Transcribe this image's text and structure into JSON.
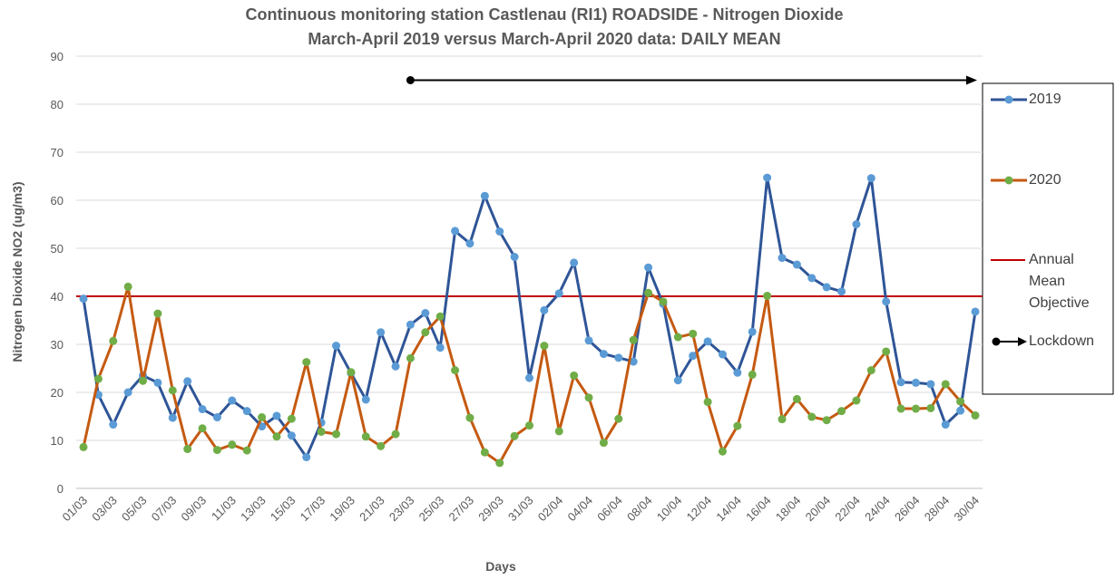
{
  "chart_data": {
    "type": "line",
    "title": "Continuous monitoring station Castlenau (RI1) ROADSIDE - Nitrogen Dioxide",
    "subtitle": "March-April 2019 versus March-April 2020 data: DAILY MEAN",
    "x_label": "Days",
    "y_label": "Nitrogen Dioxide NO2  (ug/m3)",
    "categories": [
      "01/03",
      null,
      "03/03",
      null,
      "05/03",
      null,
      "07/03",
      null,
      "09/03",
      null,
      "11/03",
      null,
      "13/03",
      null,
      "15/03",
      null,
      "17/03",
      null,
      "19/03",
      null,
      "21/03",
      null,
      "23/03",
      null,
      "25/03",
      null,
      "27/03",
      null,
      "29/03",
      null,
      "31/03",
      null,
      "02/04",
      null,
      "04/04",
      null,
      "06/04",
      null,
      "08/04",
      null,
      "10/04",
      null,
      "12/04",
      null,
      "14/04",
      null,
      "16/04",
      null,
      "18/04",
      null,
      "20/04",
      null,
      "22/04",
      null,
      "24/04",
      null,
      "26/04",
      null,
      "28/04",
      null,
      "30/04"
    ],
    "series": [
      {
        "name": "2019",
        "color": "#2f5597",
        "marker_color": "#5b9bd5",
        "values": [
          39.5,
          19.5,
          13.3,
          20,
          23.5,
          22,
          14.7,
          22.3,
          16.5,
          14.8,
          18.3,
          16.1,
          12.9,
          15.1,
          11,
          6.5,
          13.7,
          29.7,
          24,
          18.5,
          32.5,
          25.4,
          34.1,
          36.5,
          29.3,
          53.6,
          51,
          60.9,
          53.5,
          48.2,
          23,
          37.1,
          40.6,
          47,
          30.8,
          28,
          27.2,
          26.4,
          46,
          38.4,
          22.5,
          27.6,
          30.6,
          27.9,
          24.1,
          32.6,
          64.7,
          48,
          46.6,
          43.8,
          41.9,
          41,
          55,
          64.6,
          38.9,
          22.1,
          22,
          21.7,
          13.3,
          16.2,
          36.8
        ]
      },
      {
        "name": "2020",
        "color": "#c55a11",
        "marker_color": "#70ad47",
        "values": [
          8.6,
          22.8,
          30.7,
          42,
          22.4,
          36.4,
          20.4,
          8.2,
          12.5,
          8,
          9.1,
          7.9,
          14.8,
          10.8,
          14.5,
          26.3,
          11.8,
          11.3,
          24.2,
          10.8,
          8.8,
          11.3,
          27.1,
          32.5,
          35.8,
          24.6,
          14.7,
          7.5,
          5.3,
          10.9,
          13.1,
          29.7,
          11.9,
          23.5,
          18.9,
          9.5,
          14.5,
          30.9,
          40.7,
          38.9,
          31.5,
          32.2,
          18,
          7.7,
          13,
          23.7,
          40.1,
          14.4,
          18.6,
          14.9,
          14.2,
          16.1,
          18.3,
          24.6,
          28.5,
          16.6,
          16.6,
          16.7,
          21.7,
          18.1,
          15.2
        ]
      }
    ],
    "reference_line": {
      "name": "Annual Mean Objective",
      "value": 40,
      "color": "#c00000"
    },
    "annotation": {
      "name": "Lockdown",
      "x_start": "23/03",
      "x_end": "30/04",
      "y": 85,
      "color": "#000000"
    },
    "ylim": [
      0,
      90
    ],
    "yticks": [
      0,
      10,
      20,
      30,
      40,
      50,
      60,
      70,
      80,
      90
    ],
    "grid": true
  }
}
